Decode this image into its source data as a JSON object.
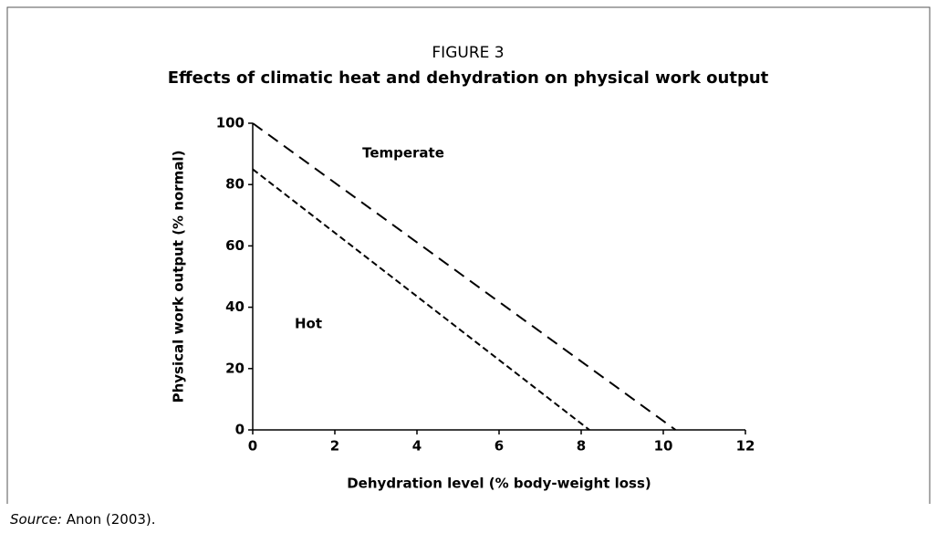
{
  "chart_data": {
    "type": "line",
    "figure_label": "FIGURE 3",
    "title": "Effects of climatic heat and dehydration on physical work output",
    "xlabel": "Dehydration level (% body-weight loss)",
    "ylabel": "Physical work output (% normal)",
    "series": [
      {
        "name": "Temperate",
        "color": "#000000",
        "line_style": "dashed",
        "x": [
          0,
          10.3
        ],
        "values": [
          100,
          0
        ]
      },
      {
        "name": "Hot",
        "color": "#000000",
        "line_style": "dashed",
        "x": [
          0,
          8.2
        ],
        "values": [
          85,
          0
        ]
      }
    ],
    "xlim": [
      0,
      12
    ],
    "xticks": [
      0,
      2,
      4,
      6,
      8,
      10,
      12
    ],
    "ylim": [
      0,
      100
    ],
    "yticks": [
      0,
      20,
      40,
      60,
      80,
      100
    ],
    "grid": false
  },
  "source": {
    "label": "Source:",
    "text": "Anon (2003)."
  }
}
